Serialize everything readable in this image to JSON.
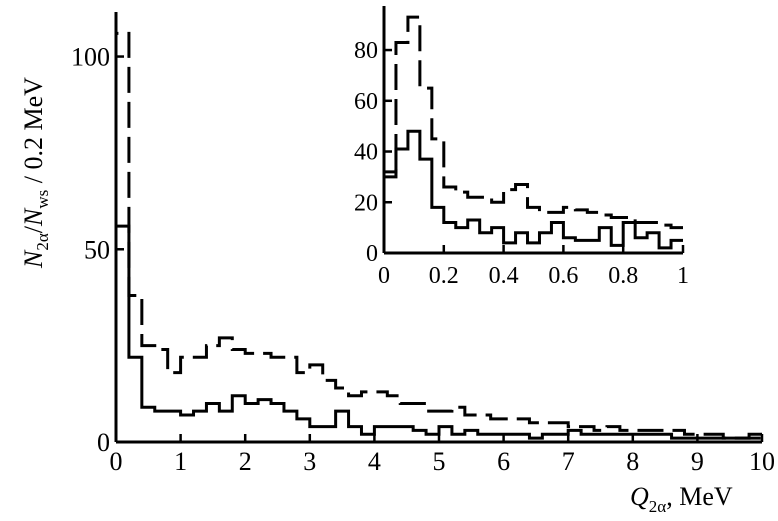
{
  "chart_data": [
    {
      "type": "histogram",
      "bin_width": 0.2,
      "xlim": [
        0,
        10
      ],
      "ylim": [
        0,
        110
      ],
      "xticks": [
        "0",
        "1",
        "2",
        "3",
        "4",
        "5",
        "6",
        "7",
        "8",
        "9",
        "10"
      ],
      "yticks": [
        "0",
        "50",
        "100"
      ],
      "ylabel": {
        "main": "N",
        "sub": "2α",
        "slash": "/N",
        "sub2": "ws",
        "tail": "  / 0.2 MeV"
      },
      "xlabel": {
        "main": "Q",
        "sub": "2α",
        "tail": ", MeV"
      },
      "series": [
        {
          "style": "dashed",
          "values": [
            106,
            38,
            25,
            24,
            18,
            22,
            22,
            25,
            27,
            24,
            23,
            23,
            22,
            22,
            18,
            20,
            16,
            14,
            12,
            13,
            13,
            12,
            10,
            10,
            8,
            8,
            9,
            7,
            7,
            6,
            6,
            6,
            5,
            5,
            5,
            4,
            4,
            3,
            4,
            3,
            3,
            3,
            3,
            3,
            2,
            2,
            2,
            1,
            1,
            1
          ]
        },
        {
          "style": "solid",
          "values": [
            56,
            22,
            9,
            8,
            8,
            7,
            8,
            10,
            8,
            12,
            10,
            11,
            10,
            8,
            6,
            4,
            4,
            8,
            4,
            2,
            4,
            4,
            4,
            3,
            2,
            4,
            2,
            3,
            2,
            2,
            2,
            2,
            1,
            2,
            2,
            3,
            2,
            2,
            2,
            2,
            2,
            2,
            2,
            1,
            1,
            1,
            1,
            1,
            1,
            2
          ]
        }
      ]
    },
    {
      "type": "histogram",
      "inset": true,
      "bin_width": 0.04,
      "xlim": [
        0,
        1
      ],
      "ylim": [
        0,
        95
      ],
      "xticks": [
        "0",
        "0.2",
        "0.4",
        "0.6",
        "0.8",
        "1"
      ],
      "yticks": [
        "0",
        "20",
        "40",
        "60",
        "80"
      ],
      "series": [
        {
          "style": "dashed",
          "values": [
            30,
            83,
            93,
            65,
            45,
            26,
            24,
            22,
            22,
            20,
            25,
            27,
            18,
            16,
            16,
            18,
            17,
            16,
            15,
            14,
            14,
            12,
            12,
            11,
            10
          ]
        },
        {
          "style": "solid",
          "values": [
            32,
            41,
            48,
            37,
            18,
            12,
            10,
            13,
            8,
            10,
            4,
            8,
            4,
            8,
            12,
            6,
            5,
            5,
            10,
            3,
            12,
            6,
            8,
            2,
            5
          ]
        }
      ]
    }
  ]
}
